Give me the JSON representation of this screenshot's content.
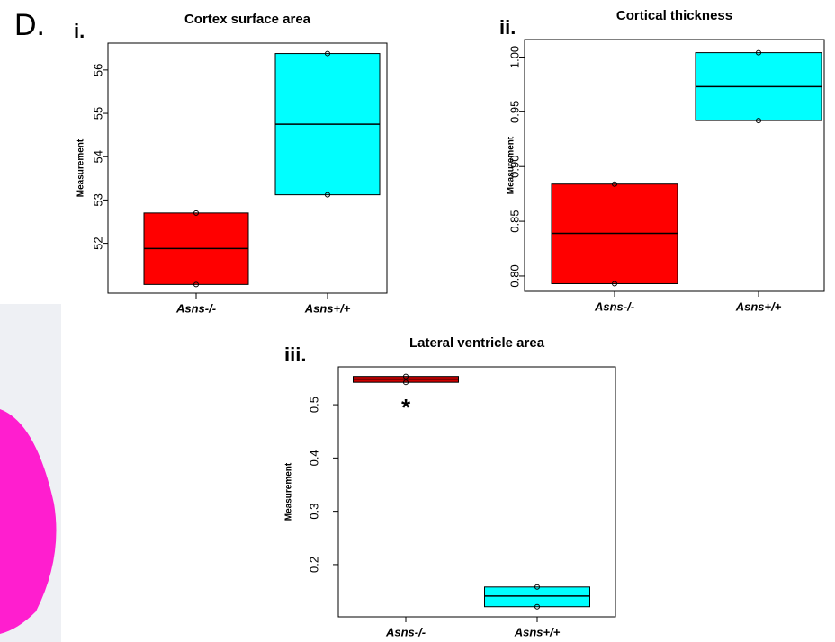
{
  "figure": {
    "panel": "D."
  },
  "chart_data": [
    {
      "type": "box",
      "label": "i.",
      "title": "Cortex surface area",
      "ylabel": "Measurement",
      "categories": [
        "Asns-/-",
        "Asns+/+"
      ],
      "colors": [
        "#ff0000",
        "#00ffff"
      ],
      "boxes": [
        {
          "min": 51.05,
          "q1": 51.05,
          "median": 51.88,
          "q3": 52.7,
          "max": 52.7
        },
        {
          "min": 53.12,
          "q1": 53.12,
          "median": 54.75,
          "q3": 56.38,
          "max": 56.38
        }
      ],
      "ylim": [
        50.85,
        56.62
      ],
      "yticks": [
        52,
        53,
        54,
        55,
        56
      ]
    },
    {
      "type": "box",
      "label": "ii.",
      "title": "Cortical thickness",
      "ylabel": "Measurement",
      "categories": [
        "Asns-/-",
        "Asns+/+"
      ],
      "colors": [
        "#ff0000",
        "#00ffff"
      ],
      "boxes": [
        {
          "min": 0.793,
          "q1": 0.793,
          "median": 0.839,
          "q3": 0.884,
          "max": 0.884
        },
        {
          "min": 0.942,
          "q1": 0.942,
          "median": 0.973,
          "q3": 1.004,
          "max": 1.004
        }
      ],
      "ylim": [
        0.786,
        1.016
      ],
      "yticks": [
        {
          "value": 0.8,
          "label": "0.80"
        },
        0.85,
        {
          "value": 0.9,
          "label": "0.90"
        },
        0.95,
        {
          "value": 1,
          "label": "1.00"
        }
      ]
    },
    {
      "type": "box",
      "label": "iii.",
      "title": "Lateral ventricle area",
      "ylabel": "Measurement",
      "annotation": "*",
      "categories": [
        "Asns-/-",
        "Asns+/+"
      ],
      "colors": [
        "#cc0000",
        "#00ffff"
      ],
      "boxes": [
        {
          "min": 0.542,
          "q1": 0.542,
          "median": 0.548,
          "q3": 0.553,
          "max": 0.553
        },
        {
          "min": 0.121,
          "q1": 0.121,
          "median": 0.141,
          "q3": 0.158,
          "max": 0.158
        }
      ],
      "ylim": [
        0.102,
        0.571
      ],
      "yticks": [
        0.2,
        0.3,
        0.4,
        0.5
      ]
    }
  ]
}
